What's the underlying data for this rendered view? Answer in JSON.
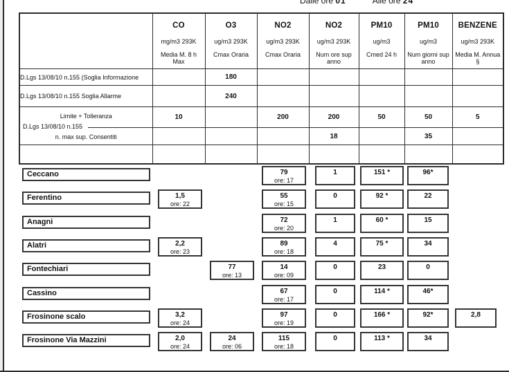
{
  "caption": {
    "prefix": "Dalle ore",
    "start_hour": "01",
    "middle": "Alle ore",
    "end_hour": "24"
  },
  "table": {
    "columns": [
      {
        "name": "CO",
        "unit": "mg/m3 293K",
        "metric": "Media M. 8 h Max"
      },
      {
        "name": "O3",
        "unit": "ug/m3 293K",
        "metric": "Cmax Oraria"
      },
      {
        "name": "NO2",
        "unit": "ug/m3 293K",
        "metric": "Cmax Oraria"
      },
      {
        "name": "NO2",
        "unit": "ug/m3 293K",
        "metric": "Num ore sup anno"
      },
      {
        "name": "PM10",
        "unit": "ug/m3",
        "metric": "Cmed 24 h"
      },
      {
        "name": "PM10",
        "unit": "ug/m3",
        "metric": "Num giorni sup anno"
      },
      {
        "name": "BENZENE",
        "unit": "ug/m3 293K",
        "metric": "Media M. Annua §"
      }
    ],
    "limit_rows": [
      {
        "label": "D.Lgs 13/08/10 n.155  (Soglia Informazione",
        "values": [
          "",
          "180",
          "",
          "",
          "",
          "",
          ""
        ]
      },
      {
        "label": "D.Lgs 13/08/10 n.155  Soglia Allarme",
        "values": [
          "",
          "240",
          "",
          "",
          "",
          "",
          ""
        ]
      }
    ],
    "dlgs_group": {
      "label": "D.Lgs 13/08/10 n.155",
      "sub1": {
        "label": "Limite + Tolleranza",
        "values": [
          "10",
          "",
          "200",
          "200",
          "50",
          "50",
          "5"
        ]
      },
      "sub2": {
        "label": "n. max sup. Consentiti",
        "values": [
          "",
          "",
          "",
          "18",
          "",
          "35",
          ""
        ]
      }
    }
  },
  "stations": [
    {
      "name": "Ceccano",
      "cells": {
        "no2max": {
          "v": "79",
          "ore": "ore: 17"
        },
        "no2sup": {
          "v": "1"
        },
        "pm10med": {
          "v": "151 *"
        },
        "pm10sup": {
          "v": "96*"
        }
      }
    },
    {
      "name": "Ferentino",
      "cells": {
        "co": {
          "v": "1,5",
          "ore": "ore: 22"
        },
        "no2max": {
          "v": "55",
          "ore": "ore: 15"
        },
        "no2sup": {
          "v": "0"
        },
        "pm10med": {
          "v": "92 *"
        },
        "pm10sup": {
          "v": "22"
        }
      }
    },
    {
      "name": "Anagni",
      "cells": {
        "no2max": {
          "v": "72",
          "ore": "ore: 20"
        },
        "no2sup": {
          "v": "1"
        },
        "pm10med": {
          "v": "60 *"
        },
        "pm10sup": {
          "v": "15"
        }
      }
    },
    {
      "name": "Alatri",
      "cells": {
        "co": {
          "v": "2,2",
          "ore": "ore: 23"
        },
        "no2max": {
          "v": "89",
          "ore": "ore: 18"
        },
        "no2sup": {
          "v": "4"
        },
        "pm10med": {
          "v": "75 *"
        },
        "pm10sup": {
          "v": "34"
        }
      }
    },
    {
      "name": "Fontechiari",
      "cells": {
        "o3": {
          "v": "77",
          "ore": "ore: 13"
        },
        "no2max": {
          "v": "14",
          "ore": "ore: 09"
        },
        "no2sup": {
          "v": "0"
        },
        "pm10med": {
          "v": "23"
        },
        "pm10sup": {
          "v": "0"
        }
      }
    },
    {
      "name": "Cassino",
      "cells": {
        "no2max": {
          "v": "67",
          "ore": "ore: 17"
        },
        "no2sup": {
          "v": "0"
        },
        "pm10med": {
          "v": "114 *"
        },
        "pm10sup": {
          "v": "46*"
        }
      }
    },
    {
      "name": "Frosinone scalo",
      "cells": {
        "co": {
          "v": "3,2",
          "ore": "ore: 24"
        },
        "no2max": {
          "v": "97",
          "ore": "ore: 19"
        },
        "no2sup": {
          "v": "0"
        },
        "pm10med": {
          "v": "166 *"
        },
        "pm10sup": {
          "v": "92*"
        },
        "benzene": {
          "v": "2,8"
        }
      }
    },
    {
      "name": "Frosinone Via Mazzini",
      "cells": {
        "co": {
          "v": "2,0",
          "ore": "ore: 24"
        },
        "o3": {
          "v": "24",
          "ore": "ore: 06"
        },
        "no2max": {
          "v": "115",
          "ore": "ore: 18"
        },
        "no2sup": {
          "v": "0"
        },
        "pm10med": {
          "v": "113 *"
        },
        "pm10sup": {
          "v": "34"
        }
      }
    }
  ]
}
